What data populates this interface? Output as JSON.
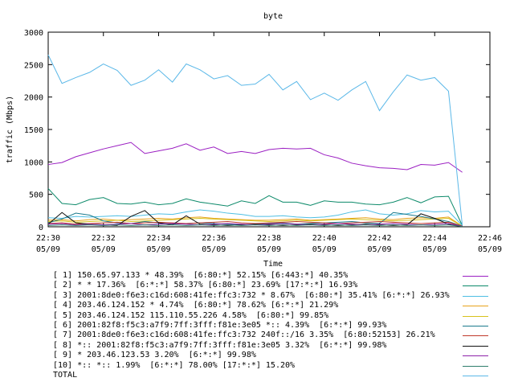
{
  "chart_data": {
    "type": "line",
    "title": "byte",
    "xlabel": "Time",
    "ylabel": "traffic (Mbps)",
    "ylim": [
      0,
      3000
    ],
    "yticks": [
      "0",
      "500",
      "1000",
      "1500",
      "2000",
      "2500",
      "3000"
    ],
    "xticks": [
      {
        "t": "22:30",
        "d": "05/09"
      },
      {
        "t": "22:32",
        "d": "05/09"
      },
      {
        "t": "22:34",
        "d": "05/09"
      },
      {
        "t": "22:36",
        "d": "05/09"
      },
      {
        "t": "22:38",
        "d": "05/09"
      },
      {
        "t": "22:40",
        "d": "05/09"
      },
      {
        "t": "22:42",
        "d": "05/09"
      },
      {
        "t": "22:44",
        "d": "05/09"
      },
      {
        "t": "22:46",
        "d": "05/09"
      }
    ],
    "x": [
      "22:30:00",
      "22:30:30",
      "22:31:00",
      "22:31:30",
      "22:32:00",
      "22:32:30",
      "22:33:00",
      "22:33:30",
      "22:34:00",
      "22:34:30",
      "22:35:00",
      "22:35:30",
      "22:36:00",
      "22:36:30",
      "22:37:00",
      "22:37:30",
      "22:38:00",
      "22:38:30",
      "22:39:00",
      "22:39:30",
      "22:40:00",
      "22:40:30",
      "22:41:00",
      "22:41:30",
      "22:42:00",
      "22:42:30",
      "22:43:00",
      "22:43:30",
      "22:44:00",
      "22:44:30",
      "22:45:00"
    ],
    "xrange": [
      "22:30:00",
      "22:46:00"
    ],
    "series": [
      {
        "name": "[ 1] 150.65.97.133 * 48.39%  [6:80:*] 52.15% [6:443:*] 40.35%",
        "color": "#9b1fc2",
        "values": [
          960,
          990,
          1080,
          1140,
          1200,
          1250,
          1300,
          1130,
          1170,
          1210,
          1280,
          1180,
          1230,
          1130,
          1160,
          1130,
          1190,
          1210,
          1200,
          1210,
          1110,
          1060,
          980,
          940,
          910,
          900,
          880,
          960,
          950,
          990,
          840
        ]
      },
      {
        "name": "[ 2] * * 17.36%  [6:*:*] 58.37% [6:80:*] 23.69% [17:*:*] 16.93%",
        "color": "#0d8a6a",
        "values": [
          590,
          360,
          340,
          420,
          450,
          360,
          350,
          380,
          340,
          360,
          430,
          380,
          350,
          320,
          400,
          360,
          480,
          380,
          380,
          330,
          400,
          380,
          380,
          350,
          340,
          380,
          450,
          370,
          460,
          470,
          20
        ]
      },
      {
        "name": "[ 3] 2001:8de0:f6e3:c16d:608:41fe:ffc3:732 * 8.67%  [6:80:*] 35.41% [6:*:*] 26.93%",
        "color": "#4fbfe3",
        "values": [
          140,
          130,
          160,
          150,
          160,
          170,
          160,
          180,
          200,
          190,
          230,
          260,
          240,
          210,
          190,
          160,
          160,
          170,
          150,
          140,
          150,
          180,
          230,
          260,
          200,
          180,
          200,
          250,
          230,
          240,
          20
        ]
      },
      {
        "name": "[ 4] 203.46.124.152 * 4.74%  [6:80:*] 78.62% [6:*:*] 21.29%",
        "color": "#e8a21a",
        "values": [
          100,
          110,
          90,
          110,
          120,
          100,
          110,
          120,
          130,
          120,
          140,
          150,
          130,
          120,
          110,
          100,
          100,
          110,
          120,
          100,
          110,
          120,
          130,
          140,
          120,
          110,
          130,
          140,
          130,
          150,
          10
        ]
      },
      {
        "name": "[ 5] 203.46.124.152 115.110.55.226 4.58%  [6:80:*] 99.85%",
        "color": "#d7c21c",
        "values": [
          80,
          90,
          70,
          80,
          90,
          100,
          80,
          90,
          100,
          110,
          120,
          130,
          120,
          110,
          100,
          90,
          80,
          90,
          100,
          90,
          100,
          110,
          120,
          110,
          100,
          90,
          100,
          110,
          120,
          130,
          10
        ]
      },
      {
        "name": "[ 6] 2001:82f8:f5c3:a7f9:7ff:3fff:f81e:3e05 *:: 4.39%  [6:*:*] 99.93%",
        "color": "#1b7a8c",
        "values": [
          60,
          120,
          210,
          180,
          90,
          60,
          50,
          80,
          60,
          40,
          50,
          60,
          50,
          40,
          30,
          40,
          50,
          60,
          40,
          50,
          60,
          70,
          80,
          60,
          50,
          220,
          190,
          160,
          120,
          80,
          10
        ]
      },
      {
        "name": "[ 7] 2001:8de0:f6e3:c16d:608:41fe:ffc3:732 240f::/16 3.35%  [6:80:52153] 26.21%",
        "color": "#c0392b",
        "values": [
          50,
          60,
          40,
          50,
          60,
          70,
          50,
          60,
          70,
          60,
          50,
          60,
          70,
          80,
          60,
          50,
          60,
          70,
          80,
          70,
          60,
          50,
          60,
          70,
          80,
          70,
          60,
          50,
          60,
          70,
          10
        ]
      },
      {
        "name": "[ 8] *:: 2001:82f8:f5c3:a7f9:7ff:3fff:f81e:3e05 3.32%  [6:*:*] 99.98%",
        "color": "#111111",
        "values": [
          40,
          220,
          60,
          40,
          30,
          20,
          160,
          250,
          60,
          30,
          170,
          40,
          30,
          20,
          30,
          40,
          30,
          20,
          30,
          40,
          30,
          20,
          30,
          40,
          30,
          20,
          30,
          200,
          130,
          40,
          10
        ]
      },
      {
        "name": "[ 9] * 203.46.123.53 3.20%  [6:*:*] 99.98%",
        "color": "#8e24aa",
        "values": [
          40,
          50,
          30,
          40,
          30,
          40,
          50,
          30,
          40,
          50,
          40,
          30,
          40,
          50,
          40,
          30,
          40,
          50,
          40,
          30,
          40,
          50,
          40,
          30,
          40,
          50,
          40,
          30,
          40,
          50,
          10
        ]
      },
      {
        "name": "[10] *:: *:: 1.99%  [6:*:*] 78.00% [17:*:*] 15.20%",
        "color": "#2e7d6b",
        "values": [
          20,
          30,
          20,
          30,
          20,
          30,
          20,
          30,
          20,
          30,
          20,
          30,
          20,
          30,
          20,
          30,
          20,
          30,
          20,
          30,
          20,
          30,
          20,
          30,
          20,
          30,
          20,
          30,
          20,
          30,
          5
        ]
      },
      {
        "name": "TOTAL",
        "color": "#5bb8e8",
        "values": [
          2650,
          2210,
          2300,
          2380,
          2510,
          2410,
          2180,
          2260,
          2420,
          2230,
          2510,
          2420,
          2280,
          2330,
          2180,
          2200,
          2350,
          2110,
          2240,
          1960,
          2060,
          1950,
          2110,
          2240,
          1790,
          2080,
          2340,
          2260,
          2300,
          2090,
          20
        ]
      }
    ],
    "grid": false,
    "legend_position": "bottom"
  }
}
